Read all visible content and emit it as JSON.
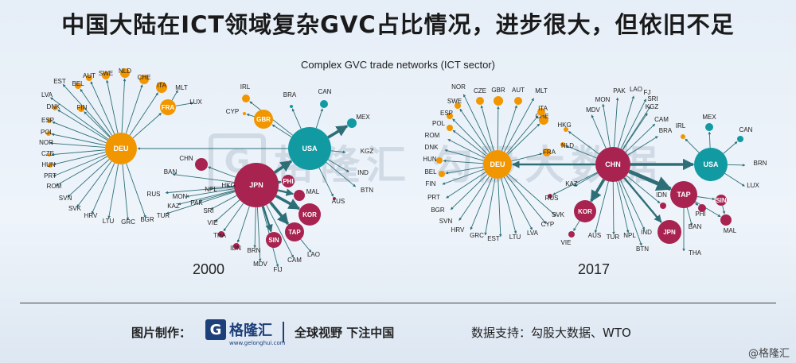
{
  "header": {
    "title": "中国大陆在ICT领域复杂GVC占比情况，进步很大，但依旧不足"
  },
  "figure": {
    "subtitle": "Complex GVC trade networks (ICT sector)"
  },
  "watermark": {
    "logo_char": "G",
    "text": "格隆汇  勾股大数据"
  },
  "colors": {
    "orange": "#f29600",
    "red": "#a8234f",
    "teal": "#129aa3",
    "edge": "#2e6f77"
  },
  "networks": [
    {
      "year": "2000",
      "nodes": [
        {
          "id": "DEU",
          "color": "orange",
          "r": 20,
          "big": true
        },
        {
          "id": "USA",
          "color": "teal",
          "r": 27,
          "big": true
        },
        {
          "id": "JPN",
          "color": "red",
          "r": 28,
          "big": true
        },
        {
          "id": "FRA",
          "color": "orange",
          "r": 10,
          "big": true
        },
        {
          "id": "GBR",
          "color": "orange",
          "r": 12,
          "big": true
        },
        {
          "id": "KOR",
          "color": "red",
          "r": 14,
          "big": true
        },
        {
          "id": "TAP",
          "color": "red",
          "r": 12,
          "big": true
        },
        {
          "id": "SIN",
          "color": "red",
          "r": 10,
          "big": true
        },
        {
          "id": "PHI",
          "color": "red",
          "r": 8,
          "big": true
        },
        {
          "id": "CHN",
          "color": "red",
          "r": 8
        },
        {
          "id": "MAL",
          "color": "red",
          "r": 7
        },
        {
          "id": "IRL",
          "color": "orange",
          "r": 5
        },
        {
          "id": "CAN",
          "color": "teal",
          "r": 5
        },
        {
          "id": "MEX",
          "color": "teal",
          "r": 6
        },
        {
          "id": "CYP",
          "color": "orange",
          "r": 2
        },
        {
          "id": "BRA",
          "color": "teal",
          "r": 2
        },
        {
          "id": "KGZ",
          "r": 2
        },
        {
          "id": "IND",
          "r": 2
        },
        {
          "id": "BTN",
          "r": 2
        },
        {
          "id": "AUS",
          "color": "red",
          "r": 2
        },
        {
          "id": "BAN",
          "r": 2
        },
        {
          "id": "RUS",
          "r": 2
        },
        {
          "id": "MON",
          "r": 2
        },
        {
          "id": "KAZ",
          "r": 2
        },
        {
          "id": "PAK",
          "r": 2
        },
        {
          "id": "TUR",
          "r": 2
        },
        {
          "id": "NPL",
          "r": 2
        },
        {
          "id": "HKG",
          "r": 2
        },
        {
          "id": "SRI",
          "r": 2
        },
        {
          "id": "VIE",
          "r": 2
        },
        {
          "id": "THA",
          "color": "red",
          "r": 4
        },
        {
          "id": "IDN",
          "color": "red",
          "r": 4
        },
        {
          "id": "BRN",
          "r": 2
        },
        {
          "id": "MDV",
          "r": 2
        },
        {
          "id": "FIJ",
          "r": 2
        },
        {
          "id": "CAM",
          "r": 2
        },
        {
          "id": "LAO",
          "r": 2
        },
        {
          "id": "AUT",
          "color": "orange",
          "r": 4
        },
        {
          "id": "SWE",
          "color": "orange",
          "r": 5
        },
        {
          "id": "NLD",
          "color": "orange",
          "r": 6
        },
        {
          "id": "CHE",
          "color": "orange",
          "r": 6
        },
        {
          "id": "ITA",
          "color": "orange",
          "r": 7
        },
        {
          "id": "MLT",
          "r": 2
        },
        {
          "id": "LUX",
          "r": 2
        },
        {
          "id": "BEL",
          "color": "orange",
          "r": 4
        },
        {
          "id": "EST",
          "r": 2
        },
        {
          "id": "LVA",
          "r": 2
        },
        {
          "id": "FIN",
          "color": "orange",
          "r": 4
        },
        {
          "id": "DNK",
          "color": "orange",
          "r": 3
        },
        {
          "id": "ESP",
          "color": "orange",
          "r": 3
        },
        {
          "id": "POL",
          "color": "orange",
          "r": 3
        },
        {
          "id": "NOR",
          "r": 2
        },
        {
          "id": "CZE",
          "color": "orange",
          "r": 2
        },
        {
          "id": "HUN",
          "color": "orange",
          "r": 3
        },
        {
          "id": "PRT",
          "r": 2
        },
        {
          "id": "ROM",
          "r": 2
        },
        {
          "id": "SVN",
          "r": 2
        },
        {
          "id": "SVK",
          "r": 2
        },
        {
          "id": "HRV",
          "r": 2
        },
        {
          "id": "LTU",
          "r": 2
        },
        {
          "id": "GRC",
          "r": 2
        },
        {
          "id": "BGR",
          "r": 2
        }
      ]
    },
    {
      "year": "2017",
      "nodes": [
        {
          "id": "CHN",
          "color": "red",
          "r": 22,
          "big": true
        },
        {
          "id": "DEU",
          "color": "orange",
          "r": 18,
          "big": true
        },
        {
          "id": "USA",
          "color": "teal",
          "r": 21,
          "big": true
        },
        {
          "id": "TAP",
          "color": "red",
          "r": 17,
          "big": true
        },
        {
          "id": "KOR",
          "color": "red",
          "r": 14,
          "big": true
        },
        {
          "id": "JPN",
          "color": "red",
          "r": 15,
          "big": true
        },
        {
          "id": "SIN",
          "color": "red",
          "r": 7,
          "big": true
        },
        {
          "id": "MAL",
          "color": "red",
          "r": 7
        },
        {
          "id": "MEX",
          "color": "teal",
          "r": 5
        },
        {
          "id": "CAN",
          "color": "teal",
          "r": 4
        },
        {
          "id": "IRL",
          "color": "orange",
          "r": 3
        },
        {
          "id": "BRN",
          "r": 2
        },
        {
          "id": "LUX",
          "r": 2
        },
        {
          "id": "MON",
          "r": 2
        },
        {
          "id": "PAK",
          "r": 2
        },
        {
          "id": "LAO",
          "r": 2
        },
        {
          "id": "FJ",
          "r": 2
        },
        {
          "id": "SRI",
          "r": 2
        },
        {
          "id": "KGZ",
          "r": 2
        },
        {
          "id": "CAM",
          "r": 2
        },
        {
          "id": "BRA",
          "r": 2
        },
        {
          "id": "MDV",
          "r": 2
        },
        {
          "id": "HKG",
          "color": "orange",
          "r": 3
        },
        {
          "id": "NLD",
          "color": "orange",
          "r": 3
        },
        {
          "id": "FRA",
          "color": "orange",
          "r": 5
        },
        {
          "id": "CHE",
          "color": "orange",
          "r": 6
        },
        {
          "id": "ITA",
          "color": "orange",
          "r": 5
        },
        {
          "id": "MLT",
          "r": 2
        },
        {
          "id": "AUT",
          "color": "orange",
          "r": 5
        },
        {
          "id": "GBR",
          "color": "orange",
          "r": 6
        },
        {
          "id": "CZE",
          "color": "orange",
          "r": 5
        },
        {
          "id": "NOR",
          "r": 2
        },
        {
          "id": "SWE",
          "color": "orange",
          "r": 4
        },
        {
          "id": "ESP",
          "color": "orange",
          "r": 4
        },
        {
          "id": "POL",
          "color": "orange",
          "r": 4
        },
        {
          "id": "ROM",
          "r": 2
        },
        {
          "id": "DNK",
          "r": 2
        },
        {
          "id": "HUN",
          "color": "orange",
          "r": 4
        },
        {
          "id": "BEL",
          "color": "orange",
          "r": 4
        },
        {
          "id": "FIN",
          "r": 2
        },
        {
          "id": "PRT",
          "r": 2
        },
        {
          "id": "BGR",
          "r": 2
        },
        {
          "id": "SVN",
          "r": 2
        },
        {
          "id": "HRV",
          "r": 2
        },
        {
          "id": "GRC",
          "r": 2
        },
        {
          "id": "EST",
          "r": 2
        },
        {
          "id": "LTU",
          "r": 2
        },
        {
          "id": "LVA",
          "r": 2
        },
        {
          "id": "CYP",
          "r": 2
        },
        {
          "id": "SVK",
          "r": 2
        },
        {
          "id": "RUS",
          "color": "red",
          "r": 3
        },
        {
          "id": "KAZ",
          "r": 2
        },
        {
          "id": "VIE",
          "color": "red",
          "r": 4
        },
        {
          "id": "AUS",
          "r": 2
        },
        {
          "id": "TUR",
          "r": 2
        },
        {
          "id": "NPL",
          "r": 2
        },
        {
          "id": "IND",
          "r": 2
        },
        {
          "id": "BTN",
          "r": 2
        },
        {
          "id": "IDN",
          "color": "red",
          "r": 4
        },
        {
          "id": "BAN",
          "r": 2
        },
        {
          "id": "THA",
          "r": 2
        },
        {
          "id": "PHI",
          "color": "red",
          "r": 5
        }
      ]
    }
  ],
  "footer": {
    "made_by_label": "图片制作：",
    "logo_char": "G",
    "logo_text": "格隆汇",
    "logo_url": "www.gelonghui.com",
    "slogan": "全球视野  下注中国",
    "source": "数据支持：勾股大数据、WTO",
    "copyright": "@格隆汇"
  }
}
